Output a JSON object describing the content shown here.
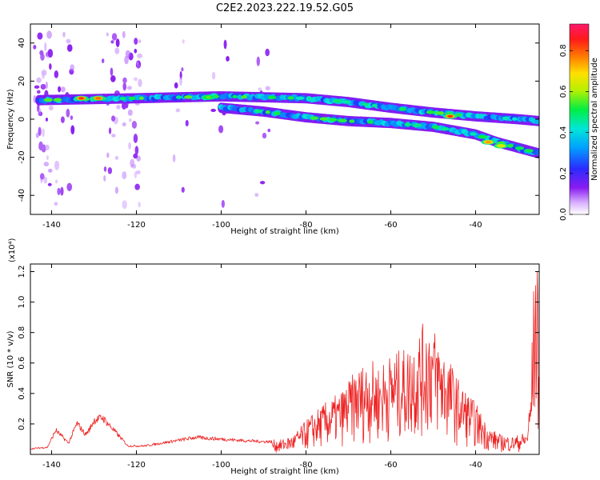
{
  "title": "C2E2.2023.222.19.52.G05",
  "colors": {
    "snr_line": "#ee2222",
    "axis": "#000000"
  },
  "chart_data": [
    {
      "type": "heatmap",
      "xlabel": "Height of straight line (km)",
      "ylabel": "Frequency (Hz)",
      "xlim": [
        -145,
        -25
      ],
      "ylim": [
        -50,
        50
      ],
      "xticks": [
        -140,
        -120,
        -100,
        -80,
        -60,
        -40
      ],
      "yticks": [
        -40,
        -20,
        0,
        20,
        40
      ],
      "colorbar": {
        "label": "Normalized spectral amplitude",
        "range": [
          0,
          0.93
        ],
        "ticks": [
          "0.0",
          "0.2",
          "0.4",
          "0.6",
          "0.8"
        ],
        "colormap": "rainbow (purple-blue-cyan-green-yellow-red-magenta)"
      },
      "ridges": [
        {
          "x": [
            -143,
            -120,
            -110,
            -100,
            -90,
            -80,
            -70,
            -60,
            -50,
            -40,
            -30,
            -25
          ],
          "y": [
            10,
            11,
            11.5,
            12,
            11.5,
            11,
            9,
            6,
            3.5,
            1.5,
            0,
            -1
          ]
        },
        {
          "x": [
            -100,
            -90,
            -80,
            -70,
            -60,
            -50,
            -45,
            -40,
            -35,
            -30,
            -25
          ],
          "y": [
            6,
            4,
            1,
            -1,
            -2,
            -4,
            -6,
            -8,
            -12,
            -15,
            -18
          ]
        }
      ],
      "peaks": [
        {
          "x": -133,
          "y": 11,
          "amp": 0.9
        },
        {
          "x": -129,
          "y": 11,
          "amp": 0.85
        },
        {
          "x": -103,
          "y": 11.5,
          "amp": 0.6
        },
        {
          "x": -46,
          "y": 1.5,
          "amp": 0.9
        },
        {
          "x": -37,
          "y": -12,
          "amp": 0.8
        },
        {
          "x": -34,
          "y": -14,
          "amp": 0.7
        }
      ]
    },
    {
      "type": "line",
      "xlabel": "Height of straight line (km)",
      "ylabel": "SNR (10 * v/v)",
      "scale_label": "(x10⁴)",
      "xlim": [
        -145,
        -25
      ],
      "ylim": [
        0,
        1.25
      ],
      "xticks": [
        -140,
        -120,
        -100,
        -80,
        -60,
        -40
      ],
      "yticks": [
        "0.2",
        "0.4",
        "0.6",
        "0.8",
        "1.0",
        "1.2"
      ],
      "envelope": {
        "x": [
          -145,
          -141,
          -139,
          -136,
          -135,
          -134,
          -132,
          -131,
          -130,
          -128,
          -125,
          -122,
          -118,
          -112,
          -106,
          -101,
          -96,
          -90,
          -86,
          -83,
          -79,
          -75,
          -72,
          -68,
          -65,
          -63,
          -60,
          -56,
          -53,
          -51,
          -49,
          -46,
          -44,
          -40,
          -37,
          -34,
          -31,
          -28,
          -27.5,
          -27,
          -26.5,
          -26,
          -25.5,
          -25
        ],
        "y": [
          0.04,
          0.05,
          0.17,
          0.08,
          0.15,
          0.22,
          0.14,
          0.18,
          0.24,
          0.26,
          0.16,
          0.06,
          0.06,
          0.09,
          0.12,
          0.11,
          0.1,
          0.09,
          0.09,
          0.12,
          0.24,
          0.33,
          0.38,
          0.53,
          0.59,
          0.55,
          0.62,
          0.66,
          0.78,
          0.86,
          0.74,
          0.58,
          0.46,
          0.32,
          0.17,
          0.12,
          0.11,
          0.14,
          0.25,
          0.4,
          0.9,
          1.25,
          1.25,
          0.4
        ]
      }
    }
  ]
}
